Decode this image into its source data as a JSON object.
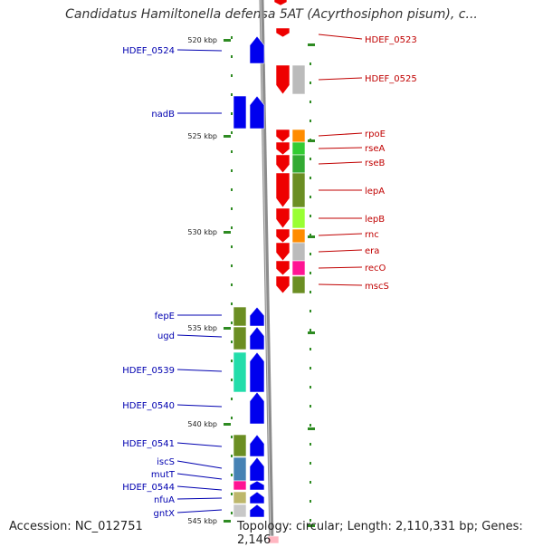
{
  "title": "Candidatus Hamiltonella defensa 5AT (Acyrthosiphon pisum), c...",
  "footer": {
    "accession": "Accession: NC_012751",
    "summary": "Topology: circular; Length: 2,110,331 bp; Genes: 2,146"
  },
  "colors": {
    "left_label": "#0000b0",
    "right_label": "#c00000",
    "forward_strand": "#0000ee",
    "reverse_strand": "#ee0000",
    "tick": "#2e8b22"
  },
  "kbp_ticks": [
    "520 kbp",
    "525 kbp",
    "530 kbp",
    "535 kbp",
    "540 kbp",
    "545 kbp"
  ],
  "left_genes": [
    "HDEF_0524",
    "nadB",
    "fepE",
    "ugd",
    "HDEF_0539",
    "HDEF_0540",
    "HDEF_0541",
    "iscS",
    "mutT",
    "HDEF_0544",
    "nfuA",
    "gntX"
  ],
  "right_genes": [
    "HDEF_0523",
    "HDEF_0525",
    "rpoE",
    "rseA",
    "rseB",
    "lepA",
    "lepB",
    "rnc",
    "era",
    "recO",
    "mscS"
  ]
}
